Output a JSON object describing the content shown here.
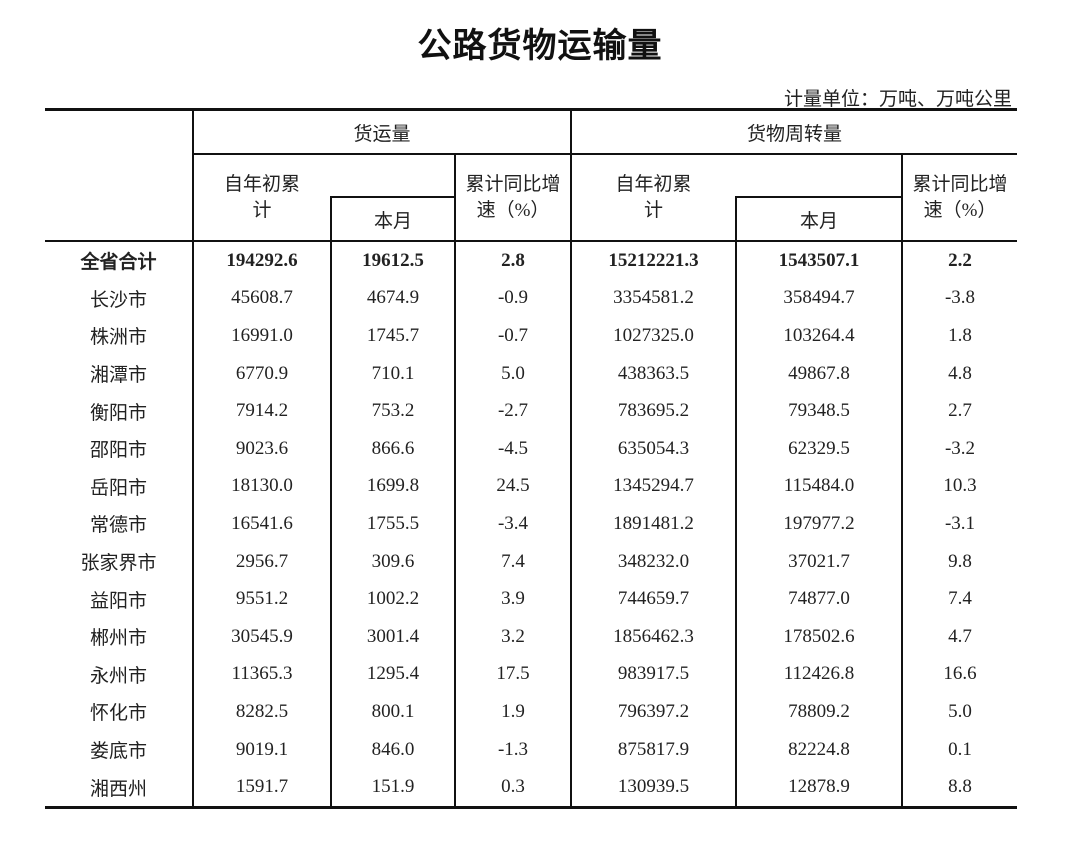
{
  "title": "公路货物运输量",
  "unit": "计量单位：万吨、万吨公里",
  "headers": {
    "freight_volume": "货运量",
    "turnover": "货物周转量",
    "ytd": "自年初累计",
    "month": "本月",
    "growth": "累计同比增速（%）"
  },
  "rows": [
    {
      "region": "全省合计",
      "fv_ytd": "194292.6",
      "fv_month": "19612.5",
      "fv_growth": "2.8",
      "to_ytd": "15212221.3",
      "to_month": "1543507.1",
      "to_growth": "2.2"
    },
    {
      "region": "长沙市",
      "fv_ytd": "45608.7",
      "fv_month": "4674.9",
      "fv_growth": "-0.9",
      "to_ytd": "3354581.2",
      "to_month": "358494.7",
      "to_growth": "-3.8"
    },
    {
      "region": "株洲市",
      "fv_ytd": "16991.0",
      "fv_month": "1745.7",
      "fv_growth": "-0.7",
      "to_ytd": "1027325.0",
      "to_month": "103264.4",
      "to_growth": "1.8"
    },
    {
      "region": "湘潭市",
      "fv_ytd": "6770.9",
      "fv_month": "710.1",
      "fv_growth": "5.0",
      "to_ytd": "438363.5",
      "to_month": "49867.8",
      "to_growth": "4.8"
    },
    {
      "region": "衡阳市",
      "fv_ytd": "7914.2",
      "fv_month": "753.2",
      "fv_growth": "-2.7",
      "to_ytd": "783695.2",
      "to_month": "79348.5",
      "to_growth": "2.7"
    },
    {
      "region": "邵阳市",
      "fv_ytd": "9023.6",
      "fv_month": "866.6",
      "fv_growth": "-4.5",
      "to_ytd": "635054.3",
      "to_month": "62329.5",
      "to_growth": "-3.2"
    },
    {
      "region": "岳阳市",
      "fv_ytd": "18130.0",
      "fv_month": "1699.8",
      "fv_growth": "24.5",
      "to_ytd": "1345294.7",
      "to_month": "115484.0",
      "to_growth": "10.3"
    },
    {
      "region": "常德市",
      "fv_ytd": "16541.6",
      "fv_month": "1755.5",
      "fv_growth": "-3.4",
      "to_ytd": "1891481.2",
      "to_month": "197977.2",
      "to_growth": "-3.1"
    },
    {
      "region": "张家界市",
      "fv_ytd": "2956.7",
      "fv_month": "309.6",
      "fv_growth": "7.4",
      "to_ytd": "348232.0",
      "to_month": "37021.7",
      "to_growth": "9.8"
    },
    {
      "region": "益阳市",
      "fv_ytd": "9551.2",
      "fv_month": "1002.2",
      "fv_growth": "3.9",
      "to_ytd": "744659.7",
      "to_month": "74877.0",
      "to_growth": "7.4"
    },
    {
      "region": "郴州市",
      "fv_ytd": "30545.9",
      "fv_month": "3001.4",
      "fv_growth": "3.2",
      "to_ytd": "1856462.3",
      "to_month": "178502.6",
      "to_growth": "4.7"
    },
    {
      "region": "永州市",
      "fv_ytd": "11365.3",
      "fv_month": "1295.4",
      "fv_growth": "17.5",
      "to_ytd": "983917.5",
      "to_month": "112426.8",
      "to_growth": "16.6"
    },
    {
      "region": "怀化市",
      "fv_ytd": "8282.5",
      "fv_month": "800.1",
      "fv_growth": "1.9",
      "to_ytd": "796397.2",
      "to_month": "78809.2",
      "to_growth": "5.0"
    },
    {
      "region": "娄底市",
      "fv_ytd": "9019.1",
      "fv_month": "846.0",
      "fv_growth": "-1.3",
      "to_ytd": "875817.9",
      "to_month": "82224.8",
      "to_growth": "0.1"
    },
    {
      "region": "湘西州",
      "fv_ytd": "1591.7",
      "fv_month": "151.9",
      "fv_growth": "0.3",
      "to_ytd": "130939.5",
      "to_month": "12878.9",
      "to_growth": "8.8"
    }
  ]
}
